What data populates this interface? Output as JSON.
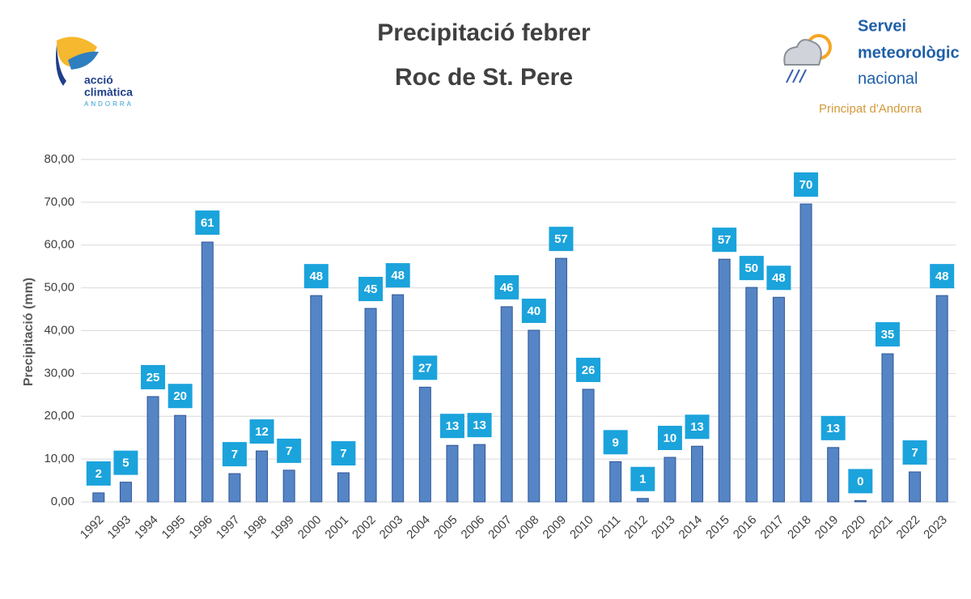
{
  "chart_data": {
    "type": "bar",
    "title": "Precipitació febrer",
    "subtitle": "Roc de St. Pere",
    "y_label": "Precipitació (mm)",
    "categories": [
      "1992",
      "1993",
      "1994",
      "1995",
      "1996",
      "1997",
      "1998",
      "1999",
      "2000",
      "2001",
      "2002",
      "2003",
      "2004",
      "2005",
      "2006",
      "2007",
      "2008",
      "2009",
      "2010",
      "2011",
      "2012",
      "2013",
      "2014",
      "2015",
      "2016",
      "2017",
      "2018",
      "2019",
      "2020",
      "2021",
      "2022",
      "2023"
    ],
    "values": [
      2.1,
      4.6,
      24.6,
      20.2,
      60.7,
      6.6,
      11.9,
      7.4,
      48.2,
      6.8,
      45.2,
      48.4,
      26.8,
      13.2,
      13.4,
      45.6,
      40.1,
      56.9,
      26.3,
      9.4,
      0.8,
      10.4,
      13.0,
      56.7,
      50.1,
      47.8,
      69.6,
      12.7,
      0.3,
      34.6,
      7.0,
      48.2
    ],
    "value_labels": [
      "2",
      "5",
      "25",
      "20",
      "61",
      "7",
      "12",
      "7",
      "48",
      "7",
      "45",
      "48",
      "27",
      "13",
      "13",
      "46",
      "40",
      "57",
      "26",
      "9",
      "1",
      "10",
      "13",
      "57",
      "50",
      "48",
      "70",
      "13",
      "0",
      "35",
      "7",
      "48"
    ],
    "color": "#5585c5",
    "label_color": "#1ba3dc",
    "ylim": [
      0,
      80
    ],
    "yticks": [
      {
        "value": 0,
        "label": "0,00"
      },
      {
        "value": 10,
        "label": "10,00"
      },
      {
        "value": 20,
        "label": "20,00"
      },
      {
        "value": 30,
        "label": "30,00"
      },
      {
        "value": 40,
        "label": "40,00"
      },
      {
        "value": 50,
        "label": "50,00"
      },
      {
        "value": 60,
        "label": "60,00"
      },
      {
        "value": 70,
        "label": "70,00"
      },
      {
        "value": 80,
        "label": "80,00"
      }
    ],
    "grid": true
  },
  "logos": {
    "left": [
      "acció",
      "climàtica",
      "ANDORRA"
    ],
    "right": [
      "Servei",
      "meteorològic",
      "nacional",
      "Principat d'Andorra"
    ]
  }
}
